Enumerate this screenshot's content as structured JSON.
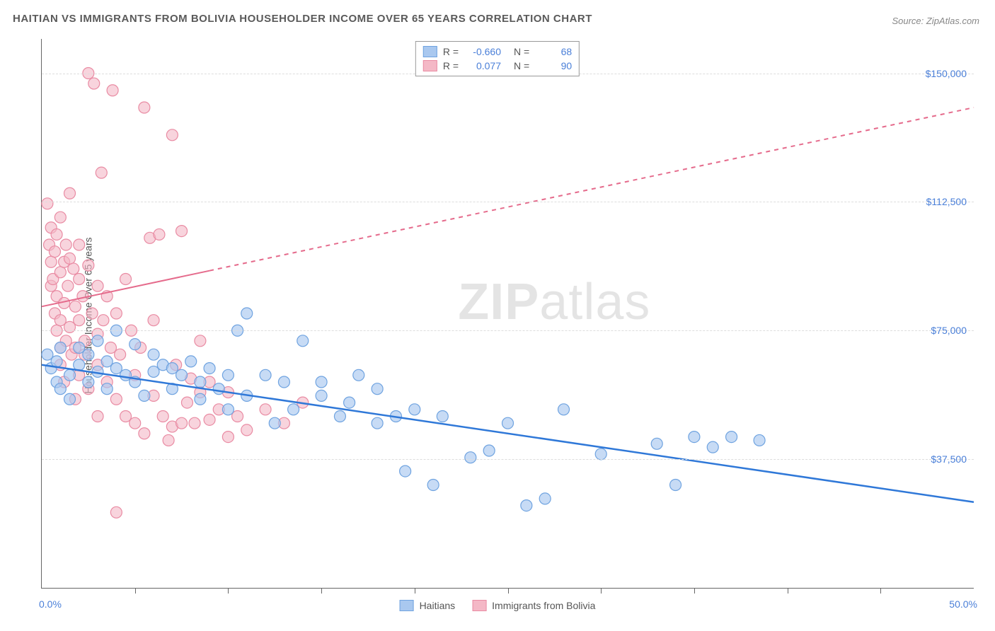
{
  "title": "HAITIAN VS IMMIGRANTS FROM BOLIVIA HOUSEHOLDER INCOME OVER 65 YEARS CORRELATION CHART",
  "source": "Source: ZipAtlas.com",
  "ylabel": "Householder Income Over 65 years",
  "watermark_bold": "ZIP",
  "watermark_light": "atlas",
  "chart": {
    "type": "scatter",
    "xlim": [
      0,
      50
    ],
    "ylim": [
      0,
      160000
    ],
    "xaxis_min_label": "0.0%",
    "xaxis_max_label": "50.0%",
    "yticks": [
      37500,
      75000,
      112500,
      150000
    ],
    "ytick_labels": [
      "$37,500",
      "$75,000",
      "$112,500",
      "$150,000"
    ],
    "xtick_positions": [
      5,
      10,
      15,
      20,
      25,
      30,
      35,
      40,
      45
    ],
    "background_color": "#ffffff",
    "grid_color": "#dddddd",
    "axis_color": "#666666",
    "tick_label_color": "#4a7fd8",
    "series": [
      {
        "name": "Haitians",
        "color_fill": "#a9c8ef",
        "color_stroke": "#6fa3e0",
        "marker_radius": 8,
        "marker_opacity": 0.65,
        "R": "-0.660",
        "N": "68",
        "trend": {
          "x1": 0,
          "y1": 65000,
          "x2": 50,
          "y2": 25000,
          "solid_until_x": 50,
          "stroke": "#2f78d8",
          "width": 2.5
        },
        "points": [
          [
            0.3,
            68000
          ],
          [
            0.5,
            64000
          ],
          [
            0.8,
            60000
          ],
          [
            0.8,
            66000
          ],
          [
            1.0,
            70000
          ],
          [
            1.0,
            58000
          ],
          [
            1.5,
            62000
          ],
          [
            1.5,
            55000
          ],
          [
            2.0,
            65000
          ],
          [
            2.0,
            70000
          ],
          [
            2.5,
            60000
          ],
          [
            2.5,
            68000
          ],
          [
            3.0,
            63000
          ],
          [
            3.0,
            72000
          ],
          [
            3.5,
            66000
          ],
          [
            3.5,
            58000
          ],
          [
            4.0,
            64000
          ],
          [
            4.0,
            75000
          ],
          [
            4.5,
            62000
          ],
          [
            5.0,
            71000
          ],
          [
            5.0,
            60000
          ],
          [
            5.5,
            56000
          ],
          [
            6.0,
            63000
          ],
          [
            6.0,
            68000
          ],
          [
            6.5,
            65000
          ],
          [
            7.0,
            64000
          ],
          [
            7.0,
            58000
          ],
          [
            7.5,
            62000
          ],
          [
            8.0,
            66000
          ],
          [
            8.5,
            60000
          ],
          [
            8.5,
            55000
          ],
          [
            9.0,
            64000
          ],
          [
            9.5,
            58000
          ],
          [
            10.0,
            62000
          ],
          [
            10.0,
            52000
          ],
          [
            10.5,
            75000
          ],
          [
            11.0,
            56000
          ],
          [
            11.0,
            80000
          ],
          [
            12.0,
            62000
          ],
          [
            12.5,
            48000
          ],
          [
            13.0,
            60000
          ],
          [
            13.5,
            52000
          ],
          [
            14.0,
            72000
          ],
          [
            15.0,
            56000
          ],
          [
            15.0,
            60000
          ],
          [
            16.0,
            50000
          ],
          [
            16.5,
            54000
          ],
          [
            17.0,
            62000
          ],
          [
            18.0,
            48000
          ],
          [
            18.0,
            58000
          ],
          [
            19.0,
            50000
          ],
          [
            19.5,
            34000
          ],
          [
            20.0,
            52000
          ],
          [
            21.0,
            30000
          ],
          [
            21.5,
            50000
          ],
          [
            23.0,
            38000
          ],
          [
            24.0,
            40000
          ],
          [
            25.0,
            48000
          ],
          [
            26.0,
            24000
          ],
          [
            27.0,
            26000
          ],
          [
            28.0,
            52000
          ],
          [
            30.0,
            39000
          ],
          [
            33.0,
            42000
          ],
          [
            34.0,
            30000
          ],
          [
            35.0,
            44000
          ],
          [
            36.0,
            41000
          ],
          [
            37.0,
            44000
          ],
          [
            38.5,
            43000
          ]
        ]
      },
      {
        "name": "Immigrants from Bolivia",
        "color_fill": "#f4b8c6",
        "color_stroke": "#e98ba3",
        "marker_radius": 8,
        "marker_opacity": 0.6,
        "R": "0.077",
        "N": "90",
        "trend": {
          "x1": 0,
          "y1": 82000,
          "x2": 50,
          "y2": 140000,
          "solid_until_x": 9,
          "stroke": "#e56b8c",
          "width": 2
        },
        "points": [
          [
            0.3,
            112000
          ],
          [
            0.4,
            100000
          ],
          [
            0.5,
            95000
          ],
          [
            0.5,
            88000
          ],
          [
            0.5,
            105000
          ],
          [
            0.6,
            90000
          ],
          [
            0.7,
            80000
          ],
          [
            0.7,
            98000
          ],
          [
            0.8,
            85000
          ],
          [
            0.8,
            103000
          ],
          [
            0.8,
            75000
          ],
          [
            1.0,
            108000
          ],
          [
            1.0,
            92000
          ],
          [
            1.0,
            78000
          ],
          [
            1.0,
            70000
          ],
          [
            1.0,
            65000
          ],
          [
            1.2,
            95000
          ],
          [
            1.2,
            83000
          ],
          [
            1.2,
            60000
          ],
          [
            1.3,
            100000
          ],
          [
            1.3,
            72000
          ],
          [
            1.4,
            88000
          ],
          [
            1.5,
            96000
          ],
          [
            1.5,
            76000
          ],
          [
            1.5,
            115000
          ],
          [
            1.6,
            68000
          ],
          [
            1.7,
            93000
          ],
          [
            1.8,
            82000
          ],
          [
            1.8,
            70000
          ],
          [
            1.8,
            55000
          ],
          [
            2.0,
            90000
          ],
          [
            2.0,
            78000
          ],
          [
            2.0,
            62000
          ],
          [
            2.0,
            100000
          ],
          [
            2.2,
            85000
          ],
          [
            2.3,
            72000
          ],
          [
            2.3,
            68000
          ],
          [
            2.5,
            150000
          ],
          [
            2.5,
            94000
          ],
          [
            2.5,
            58000
          ],
          [
            2.7,
            80000
          ],
          [
            2.8,
            147000
          ],
          [
            3.0,
            74000
          ],
          [
            3.0,
            88000
          ],
          [
            3.0,
            65000
          ],
          [
            3.0,
            50000
          ],
          [
            3.2,
            121000
          ],
          [
            3.3,
            78000
          ],
          [
            3.5,
            60000
          ],
          [
            3.5,
            85000
          ],
          [
            3.7,
            70000
          ],
          [
            3.8,
            145000
          ],
          [
            4.0,
            55000
          ],
          [
            4.0,
            80000
          ],
          [
            4.0,
            22000
          ],
          [
            4.2,
            68000
          ],
          [
            4.5,
            90000
          ],
          [
            4.5,
            50000
          ],
          [
            4.8,
            75000
          ],
          [
            5.0,
            62000
          ],
          [
            5.0,
            48000
          ],
          [
            5.3,
            70000
          ],
          [
            5.5,
            140000
          ],
          [
            5.5,
            45000
          ],
          [
            5.8,
            102000
          ],
          [
            6.0,
            56000
          ],
          [
            6.0,
            78000
          ],
          [
            6.3,
            103000
          ],
          [
            6.5,
            50000
          ],
          [
            6.8,
            43000
          ],
          [
            7.0,
            132000
          ],
          [
            7.0,
            47000
          ],
          [
            7.2,
            65000
          ],
          [
            7.5,
            104000
          ],
          [
            7.5,
            48000
          ],
          [
            7.8,
            54000
          ],
          [
            8.0,
            61000
          ],
          [
            8.2,
            48000
          ],
          [
            8.5,
            72000
          ],
          [
            8.5,
            57000
          ],
          [
            9.0,
            49000
          ],
          [
            9.0,
            60000
          ],
          [
            9.5,
            52000
          ],
          [
            10.0,
            57000
          ],
          [
            10.0,
            44000
          ],
          [
            10.5,
            50000
          ],
          [
            11.0,
            46000
          ],
          [
            12.0,
            52000
          ],
          [
            13.0,
            48000
          ],
          [
            14.0,
            54000
          ]
        ]
      }
    ],
    "bottom_legend": [
      {
        "label": "Haitians",
        "fill": "#a9c8ef",
        "stroke": "#6fa3e0"
      },
      {
        "label": "Immigrants from Bolivia",
        "fill": "#f4b8c6",
        "stroke": "#e98ba3"
      }
    ]
  }
}
